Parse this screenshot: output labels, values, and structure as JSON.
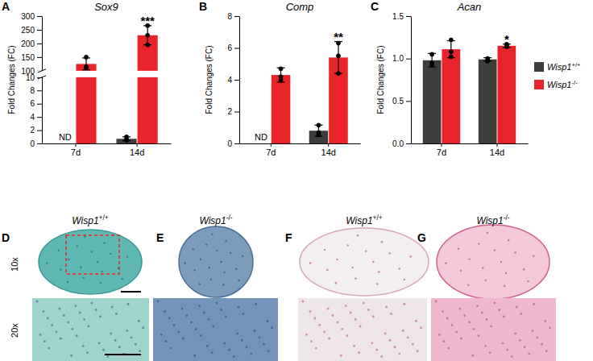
{
  "chart_data": [
    {
      "type": "bar",
      "panel": "A",
      "title": "Sox9",
      "y_label": "Fold Changes (FC)",
      "categories": [
        "7d",
        "14d"
      ],
      "ylim": [
        0,
        300
      ],
      "yticks": [
        0,
        2,
        4,
        6,
        8,
        10,
        100,
        150,
        200,
        250,
        300
      ],
      "series": [
        {
          "color": "#3d3d3d",
          "values": [
            null,
            0.7
          ],
          "errors": [
            null,
            0.3
          ],
          "points": [
            [],
            [
              1.0,
              0.6,
              0.5
            ]
          ]
        },
        {
          "color": "#e8232a",
          "values": [
            125,
            230
          ],
          "errors": [
            22,
            35
          ],
          "points": [
            [
              150,
              110,
              115
            ],
            [
              265,
              195,
              230
            ]
          ]
        }
      ],
      "annotations": [
        {
          "text": "ND",
          "category": 0,
          "series": 0
        },
        {
          "text": "***",
          "category": 1,
          "series": 1
        }
      ]
    },
    {
      "type": "bar",
      "panel": "B",
      "title": "Comp",
      "y_label": "Fold Changes (FC)",
      "categories": [
        "7d",
        "14d"
      ],
      "ylim": [
        0,
        8
      ],
      "yticks": [
        0,
        2,
        4,
        6,
        8
      ],
      "series": [
        {
          "color": "#3d3d3d",
          "values": [
            null,
            0.8
          ],
          "errors": [
            null,
            0.35
          ],
          "points": [
            [],
            [
              1.15,
              0.7,
              0.55
            ]
          ]
        },
        {
          "color": "#e8232a",
          "values": [
            4.3,
            5.4
          ],
          "errors": [
            0.45,
            1.0
          ],
          "points": [
            [
              4.7,
              4.0,
              4.2
            ],
            [
              6.3,
              5.5,
              4.4
            ]
          ]
        }
      ],
      "annotations": [
        {
          "text": "ND",
          "category": 0,
          "series": 0
        },
        {
          "text": "**",
          "category": 1,
          "series": 1
        }
      ]
    },
    {
      "type": "bar",
      "panel": "C",
      "title": "Acan",
      "y_label": "Fold Changes (FC)",
      "categories": [
        "7d",
        "14d"
      ],
      "ylim": [
        0,
        1.5
      ],
      "yticks": [
        {
          "value": 0,
          "label": "0.0"
        },
        {
          "value": 0.5,
          "label": "0.5"
        },
        {
          "value": 1,
          "label": "1.0"
        },
        {
          "value": 1.5,
          "label": "1.5"
        }
      ],
      "legend": "right",
      "series": [
        {
          "name": "Wisp1+/+",
          "color": "#3d3d3d",
          "values": [
            0.98,
            0.99
          ],
          "errors": [
            0.08,
            0.02
          ],
          "points": [
            [
              1.05,
              0.95,
              0.93
            ],
            [
              1.0,
              0.98,
              0.97
            ]
          ]
        },
        {
          "name": "Wisp1-/-",
          "color": "#e8232a",
          "values": [
            1.11,
            1.15
          ],
          "errors": [
            0.1,
            0.02
          ],
          "points": [
            [
              1.22,
              1.08,
              1.02
            ],
            [
              1.17,
              1.15,
              1.14
            ]
          ]
        }
      ],
      "annotations": [
        {
          "text": "*",
          "category": 1,
          "series": 1
        }
      ]
    }
  ],
  "histology": {
    "panels": [
      {
        "label": "D",
        "genotype": "Wisp1+/+"
      },
      {
        "label": "E",
        "genotype": "Wisp1-/-"
      },
      {
        "label": "F",
        "genotype": "Wisp1+/+"
      },
      {
        "label": "G",
        "genotype": "Wisp1-/-"
      }
    ],
    "magnifications": [
      "10x",
      "20x"
    ]
  }
}
